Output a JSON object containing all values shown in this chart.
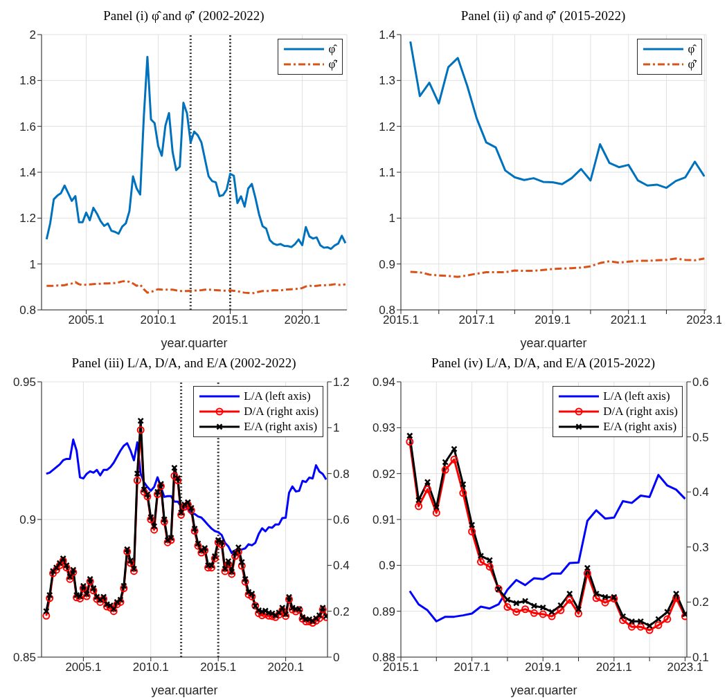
{
  "chart_data": [
    {
      "type": "line",
      "title": "Panel (i) φ̂ and φ̂′ (2002-2022)",
      "xlabel": "year.quarter",
      "legend": "top right",
      "grid": true,
      "xlim": [
        2002,
        2023.2
      ],
      "xticks": [
        2005.1,
        2010.1,
        2015.1,
        2020.1
      ],
      "ylim": [
        0.8,
        2
      ],
      "yticks": [
        0.8,
        1,
        1.2,
        1.4,
        1.6,
        1.8,
        2
      ],
      "ref_lines": [
        {
          "axis": "x",
          "value": 2012.35,
          "color": "#404040",
          "line_style": "dotted"
        },
        {
          "axis": "x",
          "value": 2015.1,
          "color": "#404040",
          "line_style": "dotted"
        }
      ],
      "x": [
        2002.35,
        2002.6,
        2002.85,
        2003.1,
        2003.35,
        2003.6,
        2003.85,
        2004.1,
        2004.35,
        2004.6,
        2004.85,
        2005.1,
        2005.35,
        2005.6,
        2005.85,
        2006.1,
        2006.35,
        2006.6,
        2006.85,
        2007.1,
        2007.35,
        2007.6,
        2007.85,
        2008.1,
        2008.35,
        2008.6,
        2008.85,
        2009.1,
        2009.35,
        2009.6,
        2009.85,
        2010.1,
        2010.35,
        2010.6,
        2010.85,
        2011.1,
        2011.35,
        2011.6,
        2011.85,
        2012.1,
        2012.35,
        2012.6,
        2012.85,
        2013.1,
        2013.35,
        2013.6,
        2013.85,
        2014.1,
        2014.35,
        2014.6,
        2014.85,
        2015.1,
        2015.35,
        2015.6,
        2015.85,
        2016.1,
        2016.35,
        2016.6,
        2016.85,
        2017.1,
        2017.35,
        2017.6,
        2017.85,
        2018.1,
        2018.35,
        2018.6,
        2018.85,
        2019.1,
        2019.35,
        2019.6,
        2019.85,
        2020.1,
        2020.35,
        2020.6,
        2020.85,
        2021.1,
        2021.35,
        2021.6,
        2021.85,
        2022.1,
        2022.35,
        2022.6,
        2022.85,
        2023.1
      ],
      "series": [
        {
          "name": "φ̂",
          "color": "#0072bd",
          "line_style": "solid",
          "values": [
            1.108,
            1.177,
            1.282,
            1.298,
            1.309,
            1.342,
            1.309,
            1.275,
            1.296,
            1.182,
            1.182,
            1.224,
            1.191,
            1.245,
            1.219,
            1.187,
            1.166,
            1.177,
            1.145,
            1.14,
            1.132,
            1.163,
            1.177,
            1.23,
            1.382,
            1.33,
            1.303,
            1.64,
            1.903,
            1.63,
            1.614,
            1.514,
            1.472,
            1.603,
            1.658,
            1.488,
            1.409,
            1.424,
            1.703,
            1.656,
            1.53,
            1.577,
            1.561,
            1.53,
            1.456,
            1.382,
            1.361,
            1.356,
            1.296,
            1.3,
            1.324,
            1.393,
            1.385,
            1.266,
            1.295,
            1.25,
            1.329,
            1.349,
            1.288,
            1.217,
            1.165,
            1.154,
            1.104,
            1.089,
            1.083,
            1.087,
            1.079,
            1.078,
            1.074,
            1.087,
            1.107,
            1.082,
            1.161,
            1.12,
            1.111,
            1.116,
            1.082,
            1.071,
            1.073,
            1.066,
            1.081,
            1.089,
            1.123,
            1.091
          ]
        },
        {
          "name": "φ̂′",
          "color": "#d95319",
          "line_style": "dashed",
          "values": [
            0.905,
            0.905,
            0.905,
            0.906,
            0.906,
            0.908,
            0.912,
            0.915,
            0.921,
            0.912,
            0.908,
            0.91,
            0.911,
            0.912,
            0.913,
            0.914,
            0.915,
            0.915,
            0.916,
            0.917,
            0.92,
            0.924,
            0.926,
            0.922,
            0.915,
            0.905,
            0.91,
            0.89,
            0.875,
            0.878,
            0.885,
            0.89,
            0.888,
            0.888,
            0.888,
            0.888,
            0.885,
            0.882,
            0.882,
            0.882,
            0.883,
            0.884,
            0.885,
            0.886,
            0.888,
            0.888,
            0.887,
            0.886,
            0.885,
            0.884,
            0.884,
            0.885,
            0.883,
            0.882,
            0.877,
            0.875,
            0.874,
            0.872,
            0.875,
            0.879,
            0.882,
            0.882,
            0.882,
            0.886,
            0.885,
            0.885,
            0.887,
            0.889,
            0.89,
            0.891,
            0.892,
            0.895,
            0.902,
            0.906,
            0.903,
            0.905,
            0.907,
            0.907,
            0.908,
            0.909,
            0.912,
            0.909,
            0.908,
            0.912
          ]
        }
      ]
    },
    {
      "type": "line",
      "title": "Panel (ii) φ̂ and φ̂′ (2015-2022)",
      "xlabel": "year.quarter",
      "legend": "top right",
      "grid": true,
      "xlim": [
        2015.1,
        2023.15
      ],
      "xticks": [
        2015.1,
        {
          "value": 2016.1,
          "label": null
        },
        2017.1,
        {
          "value": 2018.1,
          "label": null
        },
        2019.1,
        {
          "value": 2020.1,
          "label": null
        },
        2021.1,
        {
          "value": 2022.1,
          "label": null
        },
        2023.1
      ],
      "ylim": [
        0.8,
        1.4
      ],
      "yticks": [
        0.8,
        0.9,
        1,
        1.1,
        1.2,
        1.3,
        1.4
      ],
      "x": [
        2015.35,
        2015.6,
        2015.85,
        2016.1,
        2016.35,
        2016.6,
        2016.85,
        2017.1,
        2017.35,
        2017.6,
        2017.85,
        2018.1,
        2018.35,
        2018.6,
        2018.85,
        2019.1,
        2019.35,
        2019.6,
        2019.85,
        2020.1,
        2020.35,
        2020.6,
        2020.85,
        2021.1,
        2021.35,
        2021.6,
        2021.85,
        2022.1,
        2022.35,
        2022.6,
        2022.85,
        2023.1
      ],
      "series": [
        {
          "name": "φ̂",
          "color": "#0072bd",
          "line_style": "solid",
          "values": [
            1.385,
            1.266,
            1.295,
            1.25,
            1.329,
            1.349,
            1.288,
            1.217,
            1.165,
            1.154,
            1.104,
            1.089,
            1.083,
            1.087,
            1.079,
            1.078,
            1.074,
            1.087,
            1.107,
            1.082,
            1.161,
            1.12,
            1.111,
            1.116,
            1.082,
            1.071,
            1.073,
            1.066,
            1.081,
            1.089,
            1.123,
            1.091
          ]
        },
        {
          "name": "φ̂′",
          "color": "#d95319",
          "line_style": "dashed",
          "values": [
            0.883,
            0.882,
            0.877,
            0.875,
            0.874,
            0.872,
            0.875,
            0.879,
            0.882,
            0.882,
            0.882,
            0.886,
            0.885,
            0.885,
            0.887,
            0.889,
            0.89,
            0.891,
            0.892,
            0.895,
            0.902,
            0.906,
            0.903,
            0.905,
            0.907,
            0.907,
            0.908,
            0.909,
            0.912,
            0.909,
            0.908,
            0.912
          ]
        }
      ]
    },
    {
      "type": "line",
      "title": "Panel (iii) L/A, D/A, and E/A (2002-2022)",
      "xlabel": "year.quarter",
      "legend": "top right",
      "grid": true,
      "xlim": [
        2002,
        2023.2
      ],
      "xticks": [
        2005.1,
        2010.1,
        2015.1,
        2020.1
      ],
      "ylim": [
        0.85,
        0.95
      ],
      "yticks": [
        0.85,
        0.9,
        0.95
      ],
      "y2lim": [
        0,
        1.2
      ],
      "y2ticks": [
        0,
        0.2,
        0.4,
        0.6,
        0.8,
        1,
        1.2
      ],
      "ref_lines": [
        {
          "axis": "x",
          "value": 2012.35,
          "color": "#404040",
          "line_style": "dotted"
        },
        {
          "axis": "x",
          "value": 2015.1,
          "color": "#404040",
          "line_style": "dotted"
        }
      ],
      "x": [
        2002.35,
        2002.6,
        2002.85,
        2003.1,
        2003.35,
        2003.6,
        2003.85,
        2004.1,
        2004.35,
        2004.6,
        2004.85,
        2005.1,
        2005.35,
        2005.6,
        2005.85,
        2006.1,
        2006.35,
        2006.6,
        2006.85,
        2007.1,
        2007.35,
        2007.6,
        2007.85,
        2008.1,
        2008.35,
        2008.6,
        2008.85,
        2009.1,
        2009.35,
        2009.6,
        2009.85,
        2010.1,
        2010.35,
        2010.6,
        2010.85,
        2011.1,
        2011.35,
        2011.6,
        2011.85,
        2012.1,
        2012.35,
        2012.6,
        2012.85,
        2013.1,
        2013.35,
        2013.6,
        2013.85,
        2014.1,
        2014.35,
        2014.6,
        2014.85,
        2015.1,
        2015.35,
        2015.6,
        2015.85,
        2016.1,
        2016.35,
        2016.6,
        2016.85,
        2017.1,
        2017.35,
        2017.6,
        2017.85,
        2018.1,
        2018.35,
        2018.6,
        2018.85,
        2019.1,
        2019.35,
        2019.6,
        2019.85,
        2020.1,
        2020.35,
        2020.6,
        2020.85,
        2021.1,
        2021.35,
        2021.6,
        2021.85,
        2022.1,
        2022.35,
        2022.6,
        2022.85,
        2023.1
      ],
      "series": [
        {
          "name": "L/A (left axis)",
          "color": "#0000ff",
          "line_style": "solid",
          "marker": "none",
          "values": [
            0.9166,
            0.917,
            0.918,
            0.919,
            0.92,
            0.9215,
            0.922,
            0.922,
            0.929,
            0.925,
            0.9153,
            0.9149,
            0.9166,
            0.9175,
            0.917,
            0.918,
            0.916,
            0.918,
            0.918,
            0.919,
            0.9206,
            0.9228,
            0.925,
            0.9268,
            0.9277,
            0.925,
            0.9215,
            0.928,
            0.9166,
            0.9135,
            0.9118,
            0.9104,
            0.9118,
            0.9153,
            0.9118,
            0.9082,
            0.9085,
            0.9085,
            0.9065,
            0.9065,
            0.9047,
            0.9047,
            0.9038,
            0.902,
            0.902,
            0.9011,
            0.9007,
            0.8994,
            0.898,
            0.8967,
            0.8958,
            0.8954,
            0.8944,
            0.8915,
            0.8902,
            0.8878,
            0.8888,
            0.8888,
            0.8891,
            0.8895,
            0.891,
            0.8906,
            0.8915,
            0.8947,
            0.8968,
            0.8957,
            0.8972,
            0.897,
            0.8982,
            0.8982,
            0.9005,
            0.9006,
            0.9097,
            0.912,
            0.9102,
            0.9104,
            0.914,
            0.9136,
            0.9152,
            0.9149,
            0.9197,
            0.9174,
            0.9165,
            0.9145
          ]
        },
        {
          "name": "D/A (right axis)",
          "color": "#ff0000",
          "line_style": "solid",
          "marker": "circle",
          "axis": "y2",
          "values": [
            0.18,
            0.257,
            0.365,
            0.38,
            0.4,
            0.42,
            0.39,
            0.34,
            0.37,
            0.26,
            0.255,
            0.3,
            0.265,
            0.33,
            0.29,
            0.253,
            0.24,
            0.253,
            0.22,
            0.215,
            0.2,
            0.23,
            0.24,
            0.3,
            0.46,
            0.41,
            0.375,
            0.77,
            0.99,
            0.72,
            0.7,
            0.6,
            0.555,
            0.71,
            0.745,
            0.59,
            0.5,
            0.51,
            0.79,
            0.77,
            0.62,
            0.655,
            0.665,
            0.64,
            0.55,
            0.485,
            0.455,
            0.465,
            0.39,
            0.39,
            0.43,
            0.5,
            0.491,
            0.374,
            0.405,
            0.362,
            0.44,
            0.459,
            0.398,
            0.328,
            0.273,
            0.264,
            0.224,
            0.191,
            0.182,
            0.187,
            0.18,
            0.178,
            0.174,
            0.185,
            0.204,
            0.179,
            0.252,
            0.207,
            0.199,
            0.206,
            0.167,
            0.155,
            0.155,
            0.149,
            0.158,
            0.169,
            0.207,
            0.174
          ]
        },
        {
          "name": "E/A (right axis)",
          "color": "#000000",
          "line_style": "solid",
          "marker": "cross",
          "axis": "y2",
          "values": [
            0.2,
            0.27,
            0.375,
            0.39,
            0.41,
            0.43,
            0.4,
            0.35,
            0.38,
            0.27,
            0.265,
            0.31,
            0.275,
            0.34,
            0.3,
            0.263,
            0.25,
            0.263,
            0.23,
            0.225,
            0.21,
            0.24,
            0.25,
            0.31,
            0.47,
            0.42,
            0.385,
            0.8,
            1.03,
            0.73,
            0.71,
            0.61,
            0.57,
            0.72,
            0.755,
            0.6,
            0.51,
            0.52,
            0.825,
            0.78,
            0.63,
            0.665,
            0.675,
            0.65,
            0.56,
            0.495,
            0.465,
            0.475,
            0.4,
            0.4,
            0.44,
            0.51,
            0.502,
            0.385,
            0.418,
            0.372,
            0.454,
            0.478,
            0.414,
            0.34,
            0.284,
            0.276,
            0.223,
            0.204,
            0.198,
            0.202,
            0.193,
            0.19,
            0.182,
            0.194,
            0.215,
            0.187,
            0.262,
            0.215,
            0.209,
            0.209,
            0.174,
            0.165,
            0.165,
            0.157,
            0.169,
            0.182,
            0.215,
            0.178
          ]
        }
      ]
    },
    {
      "type": "line",
      "title": "Panel (iv) L/A, D/A, and E/A (2015-2022)",
      "xlabel": "year.quarter",
      "legend": "top right",
      "grid": true,
      "xlim": [
        2015.1,
        2023.15
      ],
      "xticks": [
        2015.1,
        {
          "value": 2016.1,
          "label": null
        },
        2017.1,
        {
          "value": 2018.1,
          "label": null
        },
        2019.1,
        {
          "value": 2020.1,
          "label": null
        },
        2021.1,
        {
          "value": 2022.1,
          "label": null
        },
        2023.1
      ],
      "ylim": [
        0.88,
        0.94
      ],
      "yticks": [
        0.88,
        0.89,
        0.9,
        0.91,
        0.92,
        0.93,
        0.94
      ],
      "y2lim": [
        0.1,
        0.6
      ],
      "y2ticks": [
        0.1,
        0.2,
        0.3,
        0.4,
        0.5,
        0.6
      ],
      "x": [
        2015.35,
        2015.6,
        2015.85,
        2016.1,
        2016.35,
        2016.6,
        2016.85,
        2017.1,
        2017.35,
        2017.6,
        2017.85,
        2018.1,
        2018.35,
        2018.6,
        2018.85,
        2019.1,
        2019.35,
        2019.6,
        2019.85,
        2020.1,
        2020.35,
        2020.6,
        2020.85,
        2021.1,
        2021.35,
        2021.6,
        2021.85,
        2022.1,
        2022.35,
        2022.6,
        2022.85,
        2023.1
      ],
      "series": [
        {
          "name": "L/A (left axis)",
          "color": "#0000ff",
          "line_style": "solid",
          "marker": "none",
          "values": [
            0.8944,
            0.8915,
            0.8902,
            0.8878,
            0.8888,
            0.8888,
            0.8891,
            0.8895,
            0.891,
            0.8906,
            0.8915,
            0.8947,
            0.8968,
            0.8957,
            0.8972,
            0.897,
            0.8982,
            0.8982,
            0.9005,
            0.9006,
            0.9097,
            0.912,
            0.9102,
            0.9104,
            0.914,
            0.9136,
            0.9152,
            0.9149,
            0.9197,
            0.9174,
            0.9165,
            0.9145
          ]
        },
        {
          "name": "D/A (right axis)",
          "color": "#ff0000",
          "line_style": "solid",
          "marker": "circle",
          "axis": "y2",
          "values": [
            0.491,
            0.374,
            0.405,
            0.362,
            0.44,
            0.459,
            0.398,
            0.328,
            0.273,
            0.264,
            0.224,
            0.191,
            0.182,
            0.187,
            0.18,
            0.178,
            0.174,
            0.185,
            0.204,
            0.179,
            0.252,
            0.207,
            0.199,
            0.206,
            0.167,
            0.155,
            0.155,
            0.149,
            0.158,
            0.169,
            0.207,
            0.174
          ]
        },
        {
          "name": "E/A (right axis)",
          "color": "#000000",
          "line_style": "solid",
          "marker": "cross",
          "axis": "y2",
          "values": [
            0.502,
            0.385,
            0.418,
            0.372,
            0.454,
            0.478,
            0.414,
            0.34,
            0.284,
            0.276,
            0.223,
            0.204,
            0.198,
            0.202,
            0.193,
            0.19,
            0.182,
            0.194,
            0.215,
            0.187,
            0.262,
            0.215,
            0.209,
            0.209,
            0.174,
            0.165,
            0.165,
            0.157,
            0.169,
            0.182,
            0.215,
            0.178
          ]
        }
      ]
    }
  ]
}
